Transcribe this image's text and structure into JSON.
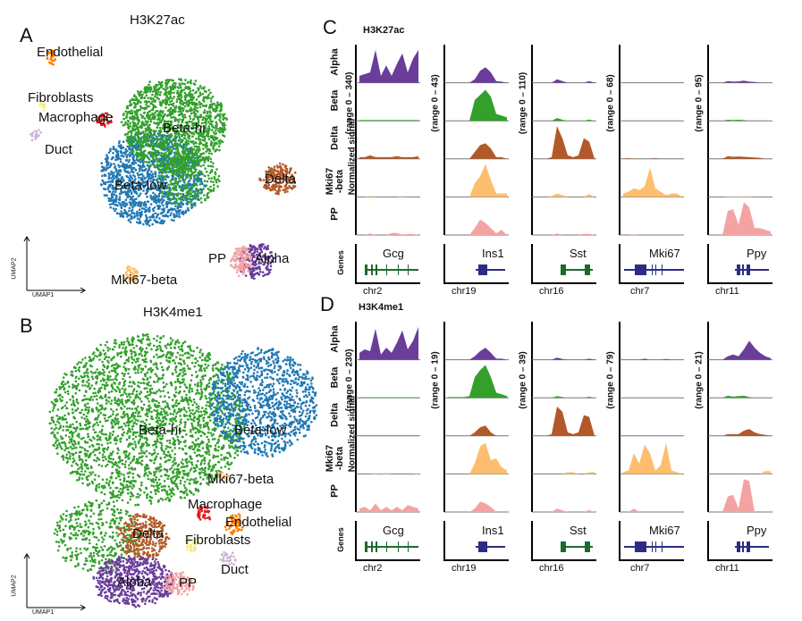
{
  "panels": {
    "A": "A",
    "B": "B",
    "C": "C",
    "D": "D"
  },
  "umap": [
    {
      "title": "H3K27ac",
      "xlabel": "UMAP1",
      "ylabel": "UMAP2",
      "labels": [
        "Endothelial",
        "Fibroblasts",
        "Macrophage",
        "Duct",
        "Beta-hi",
        "Beta-low",
        "Delta",
        "PP",
        "Alpha",
        "Mki67-beta"
      ]
    },
    {
      "title": "H3K4me1",
      "xlabel": "UMAP1",
      "ylabel": "UMAP2",
      "labels": [
        "Beta-hi",
        "Beta-low",
        "Mki67-beta",
        "Macrophage",
        "Endothelial",
        "Delta",
        "Fibroblasts",
        "Duct",
        "Alpha",
        "PP"
      ]
    }
  ],
  "colors": {
    "Alpha": "#6a3d9a",
    "Beta-hi": "#33a02c",
    "Beta-low": "#1f78b4",
    "Delta": "#b15928",
    "Mki67-beta": "#fdbf6f",
    "PP": "#f4a3a3",
    "Endothelial": "#ff7f00",
    "Fibroblasts": "#f3ef7a",
    "Macrophage": "#e31a1c",
    "Duct": "#cab2d6",
    "gene_green": "#1b6b2e",
    "gene_navy": "#2b2d84"
  },
  "chart_data": [
    {
      "type": "area",
      "title": "H3K27ac",
      "ylabel": "Normalized signal",
      "genes_label": "Genes",
      "rows": [
        "Alpha",
        "Beta",
        "Delta",
        "Mki67\n-beta",
        "PP"
      ],
      "row_colors": [
        "#6a3d9a",
        "#33a02c",
        "#b15928",
        "#fdbf6f",
        "#f4a3a3"
      ],
      "loci": [
        {
          "gene": "Gcg",
          "chr": "chr2",
          "range": "(range 0 – 340)",
          "gene_color": "#1b6b2e",
          "signal": [
            [
              0.2,
              0.25,
              0.3,
              0.95,
              0.2,
              0.5,
              0.2,
              0.55,
              0.85,
              0.3,
              0.7,
              0.95
            ],
            [
              0.02,
              0.02,
              0.02,
              0.02,
              0.02,
              0.02,
              0.02,
              0.02,
              0.02,
              0.02,
              0.02,
              0.02
            ],
            [
              0.05,
              0.05,
              0.1,
              0.05,
              0.05,
              0.05,
              0.05,
              0.08,
              0.05,
              0.05,
              0.05,
              0.08
            ],
            [
              0,
              0,
              0.03,
              0,
              0,
              0,
              0,
              0,
              0.02,
              0,
              0,
              0
            ],
            [
              0,
              0,
              0.05,
              0,
              0,
              0,
              0.06,
              0.06,
              0,
              0.03,
              0.03,
              0
            ]
          ]
        },
        {
          "gene": "Ins1",
          "chr": "chr19",
          "range": "(range 0 – 43)",
          "gene_color": "#2b2d84",
          "signal": [
            [
              0,
              0,
              0,
              0,
              0,
              0.1,
              0.35,
              0.45,
              0.3,
              0.05,
              0.03,
              0
            ],
            [
              0,
              0,
              0,
              0,
              0,
              0.6,
              0.75,
              0.9,
              0.7,
              0.2,
              0.15,
              0.1
            ],
            [
              0,
              0,
              0,
              0,
              0,
              0.2,
              0.4,
              0.45,
              0.3,
              0.05,
              0.05,
              0
            ],
            [
              0,
              0,
              0,
              0,
              0,
              0.4,
              0.6,
              0.95,
              0.5,
              0.1,
              0.1,
              0.1
            ],
            [
              0,
              0,
              0,
              0,
              0,
              0.2,
              0.45,
              0.35,
              0.2,
              0.05,
              0.15,
              0
            ]
          ]
        },
        {
          "gene": "Sst",
          "chr": "chr16",
          "range": "(range 0 – 110)",
          "gene_color": "#1b6b2e",
          "signal": [
            [
              0,
              0,
              0,
              0,
              0.1,
              0.05,
              0,
              0,
              0,
              0,
              0.05,
              0
            ],
            [
              0,
              0,
              0,
              0,
              0.08,
              0.03,
              0,
              0,
              0,
              0,
              0.04,
              0
            ],
            [
              0,
              0,
              0,
              0.05,
              0.95,
              0.6,
              0.1,
              0.05,
              0.1,
              0.6,
              0.5,
              0
            ],
            [
              0,
              0,
              0,
              0.02,
              0.1,
              0.05,
              0,
              0,
              0,
              0,
              0.08,
              0
            ],
            [
              0,
              0,
              0,
              0,
              0.05,
              0,
              0,
              0,
              0,
              0.03,
              0.03,
              0
            ]
          ]
        },
        {
          "gene": "Mki67",
          "chr": "chr7",
          "range": "(range 0 – 68)",
          "gene_color": "#2b2d84",
          "signal": [
            [
              0,
              0,
              0,
              0,
              0,
              0,
              0,
              0,
              0,
              0,
              0,
              0
            ],
            [
              0,
              0,
              0,
              0,
              0,
              0,
              0,
              0,
              0,
              0,
              0,
              0
            ],
            [
              0,
              0.02,
              0,
              0,
              0,
              0,
              0.02,
              0,
              0,
              0,
              0,
              0
            ],
            [
              0.1,
              0.15,
              0.25,
              0.2,
              0.3,
              0.85,
              0.25,
              0.15,
              0.05,
              0.1,
              0.1,
              0
            ],
            [
              0,
              0,
              0.02,
              0,
              0,
              0,
              0,
              0,
              0,
              0,
              0,
              0
            ]
          ]
        },
        {
          "gene": "Ppy",
          "chr": "chr11",
          "range": "(range 0 – 95)",
          "gene_color": "#2b2d84",
          "signal": [
            [
              0,
              0,
              0,
              0.05,
              0.03,
              0.04,
              0.06,
              0.03,
              0.02,
              0,
              0,
              0
            ],
            [
              0,
              0,
              0,
              0.03,
              0.02,
              0.03,
              0.02,
              0,
              0,
              0,
              0,
              0
            ],
            [
              0,
              0,
              0,
              0.08,
              0.06,
              0.07,
              0.06,
              0.05,
              0.04,
              0.03,
              0,
              0
            ],
            [
              0,
              0,
              0,
              0.01,
              0.01,
              0.01,
              0.01,
              0.01,
              0,
              0,
              0,
              0
            ],
            [
              0,
              0,
              0,
              0.7,
              0.75,
              0.3,
              0.95,
              0.8,
              0.2,
              0.2,
              0.15,
              0.1
            ]
          ]
        }
      ]
    },
    {
      "type": "area",
      "title": "H3K4me1",
      "ylabel": "Normalized signal",
      "genes_label": "Genes",
      "rows": [
        "Alpha",
        "Beta",
        "Delta",
        "Mki67\n-beta",
        "PP"
      ],
      "row_colors": [
        "#6a3d9a",
        "#33a02c",
        "#b15928",
        "#fdbf6f",
        "#f4a3a3"
      ],
      "loci": [
        {
          "gene": "Gcg",
          "chr": "chr2",
          "range": "(range 0 – 230)",
          "gene_color": "#1b6b2e",
          "signal": [
            [
              0.2,
              0.3,
              0.25,
              0.9,
              0.15,
              0.35,
              0.2,
              0.5,
              0.85,
              0.3,
              0.55,
              0.95
            ],
            [
              0.01,
              0.01,
              0.01,
              0.01,
              0.01,
              0.01,
              0.01,
              0.01,
              0.01,
              0.01,
              0.01,
              0.01
            ],
            [
              0.01,
              0.01,
              0.01,
              0.01,
              0.01,
              0.01,
              0.01,
              0.01,
              0.01,
              0.01,
              0.01,
              0.01
            ],
            [
              0,
              0,
              0,
              0.02,
              0,
              0.02,
              0,
              0,
              0,
              0,
              0,
              0.02
            ],
            [
              0.1,
              0.15,
              0.05,
              0.25,
              0.05,
              0.15,
              0.05,
              0.15,
              0.05,
              0.2,
              0.15,
              0.1
            ]
          ]
        },
        {
          "gene": "Ins1",
          "chr": "chr19",
          "range": "(range 0 – 19)",
          "gene_color": "#2b2d84",
          "signal": [
            [
              0,
              0,
              0,
              0,
              0,
              0.1,
              0.25,
              0.35,
              0.2,
              0.03,
              0.03,
              0
            ],
            [
              0.02,
              0.02,
              0.02,
              0.02,
              0.05,
              0.6,
              0.8,
              0.95,
              0.6,
              0.15,
              0.1,
              0.05
            ],
            [
              0,
              0,
              0,
              0,
              0,
              0.1,
              0.25,
              0.3,
              0.1,
              0,
              0,
              0
            ],
            [
              0,
              0,
              0,
              0,
              0,
              0.3,
              0.8,
              0.9,
              0.4,
              0.45,
              0.2,
              0.1
            ],
            [
              0,
              0,
              0,
              0,
              0,
              0.1,
              0.3,
              0.25,
              0.15,
              0,
              0,
              0
            ]
          ]
        },
        {
          "gene": "Sst",
          "chr": "chr16",
          "range": "(range 0 – 39)",
          "gene_color": "#1b6b2e",
          "signal": [
            [
              0,
              0,
              0,
              0,
              0.06,
              0.02,
              0,
              0,
              0,
              0,
              0.03,
              0
            ],
            [
              0,
              0,
              0,
              0,
              0.05,
              0.02,
              0,
              0,
              0,
              0,
              0.03,
              0
            ],
            [
              0,
              0,
              0,
              0.05,
              0.85,
              0.7,
              0.1,
              0.05,
              0.1,
              0.6,
              0.55,
              0
            ],
            [
              0,
              0,
              0,
              0,
              0,
              0,
              0.05,
              0.05,
              0,
              0,
              0.05,
              0.05
            ],
            [
              0,
              0,
              0,
              0,
              0.1,
              0.05,
              0,
              0,
              0,
              0,
              0.06,
              0
            ]
          ]
        },
        {
          "gene": "Mki67",
          "chr": "chr7",
          "range": "(range 0 – 79)",
          "gene_color": "#2b2d84",
          "signal": [
            [
              0,
              0,
              0,
              0,
              0.03,
              0,
              0,
              0,
              0.02,
              0,
              0,
              0
            ],
            [
              0,
              0,
              0,
              0,
              0,
              0,
              0,
              0,
              0,
              0,
              0,
              0
            ],
            [
              0,
              0,
              0,
              0,
              0,
              0,
              0,
              0,
              0,
              0,
              0,
              0
            ],
            [
              0.05,
              0.1,
              0.6,
              0.3,
              0.85,
              0.6,
              0.1,
              0.25,
              0.9,
              0.1,
              0.05,
              0
            ],
            [
              0,
              0,
              0.1,
              0,
              0,
              0,
              0,
              0,
              0,
              0,
              0,
              0
            ]
          ]
        },
        {
          "gene": "Ppy",
          "chr": "chr11",
          "range": "(range 0 – 21)",
          "gene_color": "#2b2d84",
          "signal": [
            [
              0,
              0,
              0,
              0.1,
              0.15,
              0.1,
              0.3,
              0.55,
              0.35,
              0.2,
              0.1,
              0.05
            ],
            [
              0,
              0,
              0,
              0.06,
              0.03,
              0.05,
              0.06,
              0.02,
              0,
              0,
              0,
              0
            ],
            [
              0,
              0,
              0,
              0.05,
              0.05,
              0.05,
              0.15,
              0.2,
              0.1,
              0.05,
              0.03,
              0
            ],
            [
              0,
              0,
              0,
              0,
              0,
              0,
              0,
              0,
              0,
              0,
              0.08,
              0.08
            ],
            [
              0,
              0,
              0,
              0.45,
              0.5,
              0.1,
              0.95,
              0.9,
              0,
              0,
              0,
              0
            ]
          ]
        }
      ]
    }
  ]
}
